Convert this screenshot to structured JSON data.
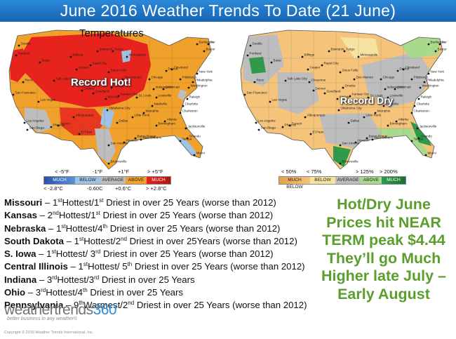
{
  "title": "June 2016 Weather Trends To Date (21 June)",
  "temp_map": {
    "title": "Temperatures",
    "overlay": "Record Hot!",
    "legend_top": [
      "< -5°F",
      "-1°F",
      "+1°F",
      "> +5°F"
    ],
    "legend_bar": [
      "MUCH BELOW",
      "BELOW",
      "AVERAGE",
      "ABOVE",
      "MUCH ABOVE"
    ],
    "legend_bottom": [
      "< -2.8°C",
      "-0.60C",
      "+0.6°C",
      "> +2.8°C"
    ],
    "colors": [
      "#3b72c4",
      "#9cc3e6",
      "#bdbdbd",
      "#f0a12b",
      "#e8231d"
    ]
  },
  "precip_map": {
    "overlay": "Record Dry",
    "legend_top": [
      "< 50%",
      "< 75%",
      "> 125%",
      "> 200%"
    ],
    "legend_bar": [
      "MUCH BELOW",
      "BELOW",
      "AVERAGE",
      "ABOVE",
      "MUCH ABOVE"
    ],
    "colors": [
      "#f5c37a",
      "#f6e3a2",
      "#bdbdbd",
      "#a9d98d",
      "#2e9a4a"
    ]
  },
  "states": [
    {
      "state": "Missouri",
      "rank1": "1",
      "sup1": "st",
      "label1": "Hottest/",
      "rank2": "1",
      "sup2": "st",
      "rest": "Driest in over 25 Years (worse than 2012)"
    },
    {
      "state": "Kansas",
      "rank1": "2",
      "sup1": "nd",
      "label1": "Hottest/",
      "rank2": "1",
      "sup2": "st",
      "rest": "Driest in over 25 Years (worse than 2012)"
    },
    {
      "state": "Nebraska",
      "rank1": "1",
      "sup1": "st",
      "label1": "Hottest/",
      "rank2": "4",
      "sup2": "th",
      "rest": "Driest in over 25 Years (worse than 2012)"
    },
    {
      "state": "South Dakota",
      "rank1": "1",
      "sup1": "st",
      "label1": "Hottest/",
      "rank2": "2",
      "sup2": "nd",
      "rest": "Driest in over 25Years (worse than 2012)"
    },
    {
      "state": "S. Iowa",
      "rank1": "1",
      "sup1": "st",
      "label1": "Hottest/ ",
      "rank2": "3",
      "sup2": "rd",
      "rest": "Driest in over 25 Years (worse than 2012)"
    },
    {
      "state": "Central Illinois",
      "rank1": "1",
      "sup1": "st",
      "label1": "Hottest/ ",
      "rank2": "5",
      "sup2": "th",
      "rest": "Driest in over 25 Years (worse than 2012)"
    },
    {
      "state": "Indiana",
      "rank1": "3",
      "sup1": "rd",
      "label1": "Hottest/",
      "rank2": "3",
      "sup2": "rd",
      "rest": "Driest in over 25 Years"
    },
    {
      "state": "Ohio",
      "rank1": "3",
      "sup1": "rd",
      "label1": "Hottest/",
      "rank2": "4",
      "sup2": "th",
      "rest": "Driest in over 25 Years"
    },
    {
      "state": "Pennsylvania",
      "rank1": "9",
      "sup1": "th",
      "label1": "Warmest/",
      "rank2": "2",
      "sup2": "nd",
      "rest": "Driest in over 25 Years (worse than 2012)"
    }
  ],
  "callout": [
    "Hot/Dry June",
    "Prices hit NEAR",
    "TERM peak $4.44",
    "They’ll go Much",
    "Higher late July –",
    "Early August"
  ],
  "logo": {
    "word1": "weathertrends",
    "word2": "360",
    "tagline": "better business in any weather®"
  },
  "copyright": "Copyright © 2016 Weather Trends International, Inc.",
  "cities": [
    "Seattle",
    "Portland",
    "Boise",
    "Reno",
    "San Francisco",
    "Los Angeles",
    "San Diego",
    "Phoenix",
    "Las Vegas",
    "Salt Lake City",
    "Denver",
    "Albuquerque",
    "El Paso",
    "Dallas",
    "Houston",
    "San Antonio",
    "Brownsville",
    "Oklahoma City",
    "Wichita",
    "Omaha",
    "Minneapolis",
    "Chicago",
    "Detroit",
    "St. Louis",
    "Memphis",
    "Little Rock",
    "New Orleans",
    "Atlanta",
    "Charlotte",
    "Washington",
    "New York",
    "Boston",
    "Miami",
    "Orlando",
    "Tampa",
    "Nashville",
    "Pittsburgh",
    "Burlington",
    "Billings",
    "Casper",
    "Rapid City",
    "Bismarck",
    "Fargo",
    "Des Moines",
    "Kansas City",
    "Cleveland",
    "Philadelphia",
    "Raleigh",
    "Charleston",
    "Jacksonville",
    "Birmingham",
    "Goodland",
    "Cheyenne",
    "Sioux Falls",
    "Louisville",
    "Cincinnati",
    "Indianapolis",
    "Portland ME",
    "Baton Rouge",
    "Tucson"
  ]
}
